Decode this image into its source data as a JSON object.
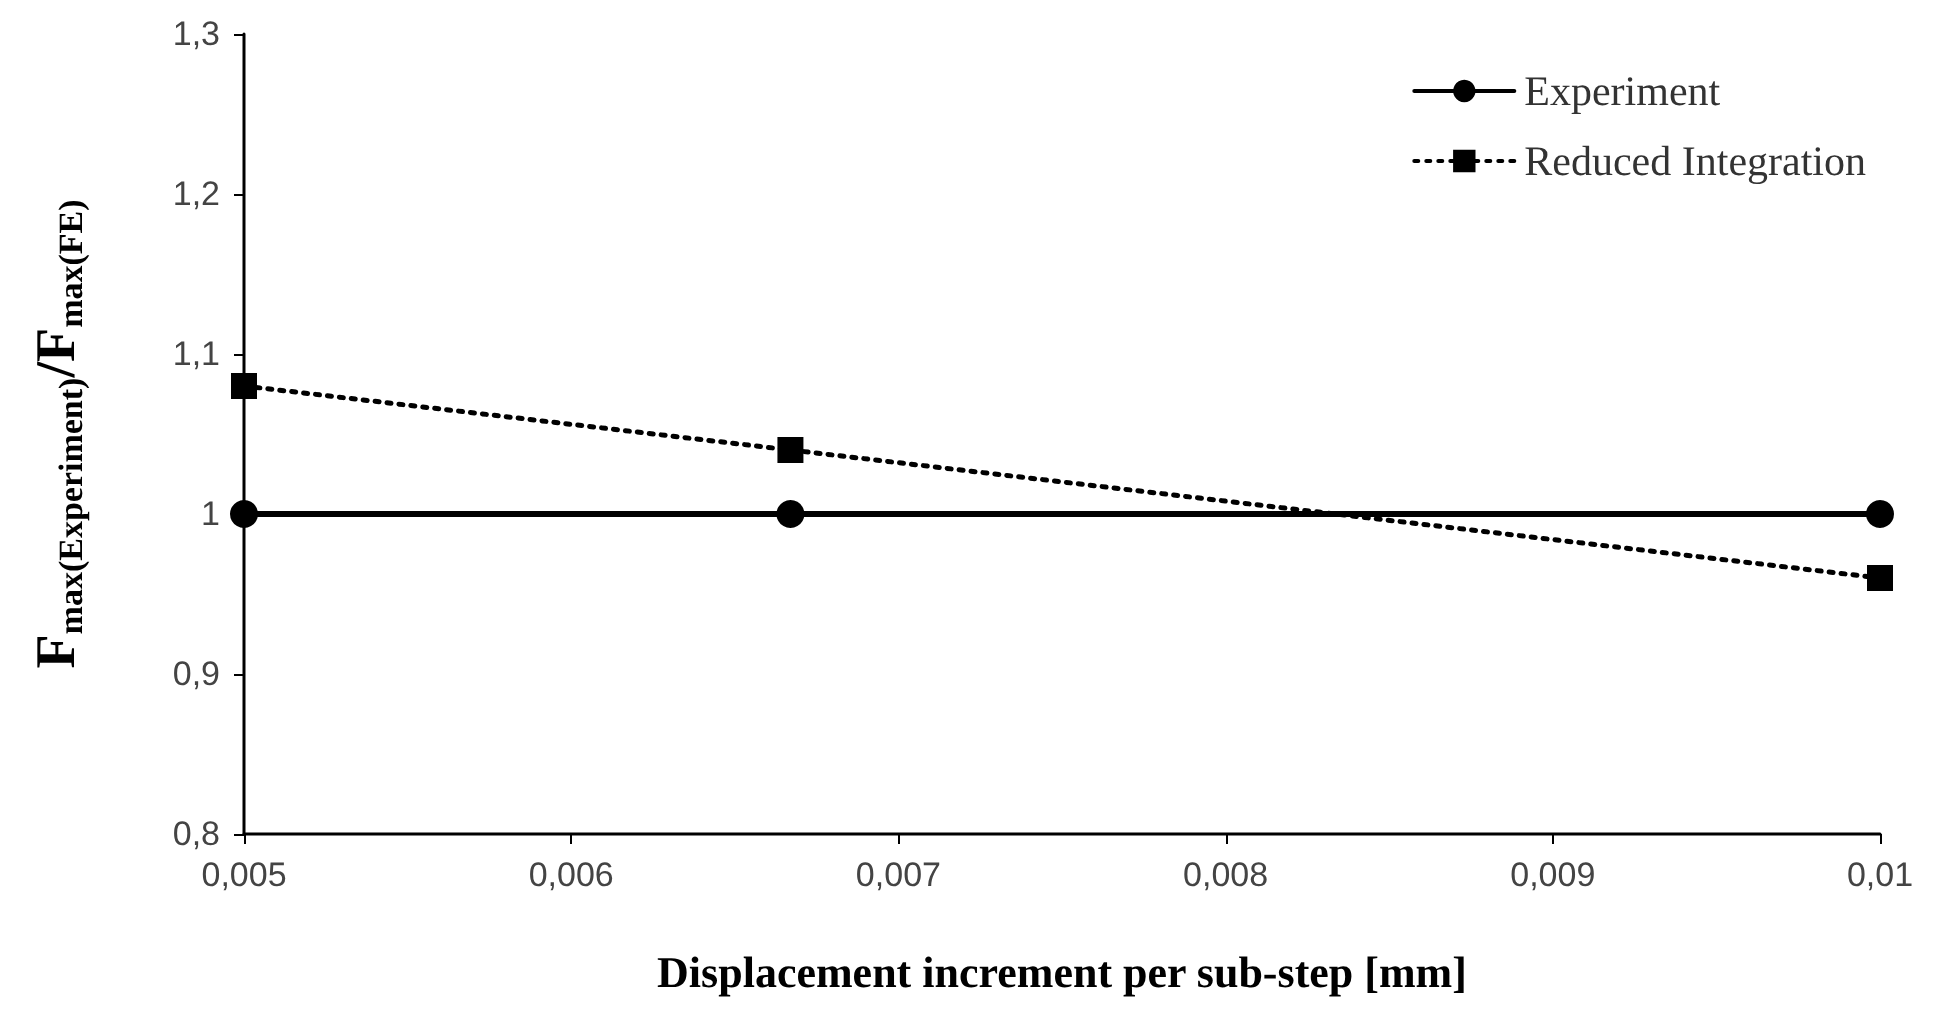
{
  "chart_data": {
    "type": "line",
    "xlabel": "Displacement increment per sub-step [mm]",
    "ylabel": "F$_{max(Experiment)}$/F$_{max(FE)}$",
    "x": [
      0.005,
      0.00667,
      0.01
    ],
    "series": [
      {
        "name": "Experiment",
        "color": "#000000",
        "values": [
          1,
          1,
          1
        ],
        "marker": "circle",
        "line_style": "solid"
      },
      {
        "name": "Reduced Integration",
        "color": "#000000",
        "values": [
          1.08,
          1.04,
          0.96
        ],
        "marker": "square",
        "line_style": "dotted"
      }
    ],
    "xlim": [
      0.005,
      0.01
    ],
    "xticks": [
      {
        "value": 0.005,
        "label": "0,005"
      },
      {
        "value": 0.006,
        "label": "0,006"
      },
      {
        "value": 0.007,
        "label": "0,007"
      },
      {
        "value": 0.008,
        "label": "0,008"
      },
      {
        "value": 0.009,
        "label": "0,009"
      },
      {
        "value": 0.01,
        "label": "0,01"
      }
    ],
    "ylim": [
      0.8,
      1.3
    ],
    "yticks": [
      {
        "value": 0.8,
        "label": "0,8"
      },
      {
        "value": 0.9,
        "label": "0,9"
      },
      {
        "value": 1,
        "label": "1"
      },
      {
        "value": 1.1,
        "label": "1,1"
      },
      {
        "value": 1.2,
        "label": "1,2"
      },
      {
        "value": 1.3,
        "label": "1,3"
      }
    ],
    "grid": false,
    "legend": "top right"
  }
}
